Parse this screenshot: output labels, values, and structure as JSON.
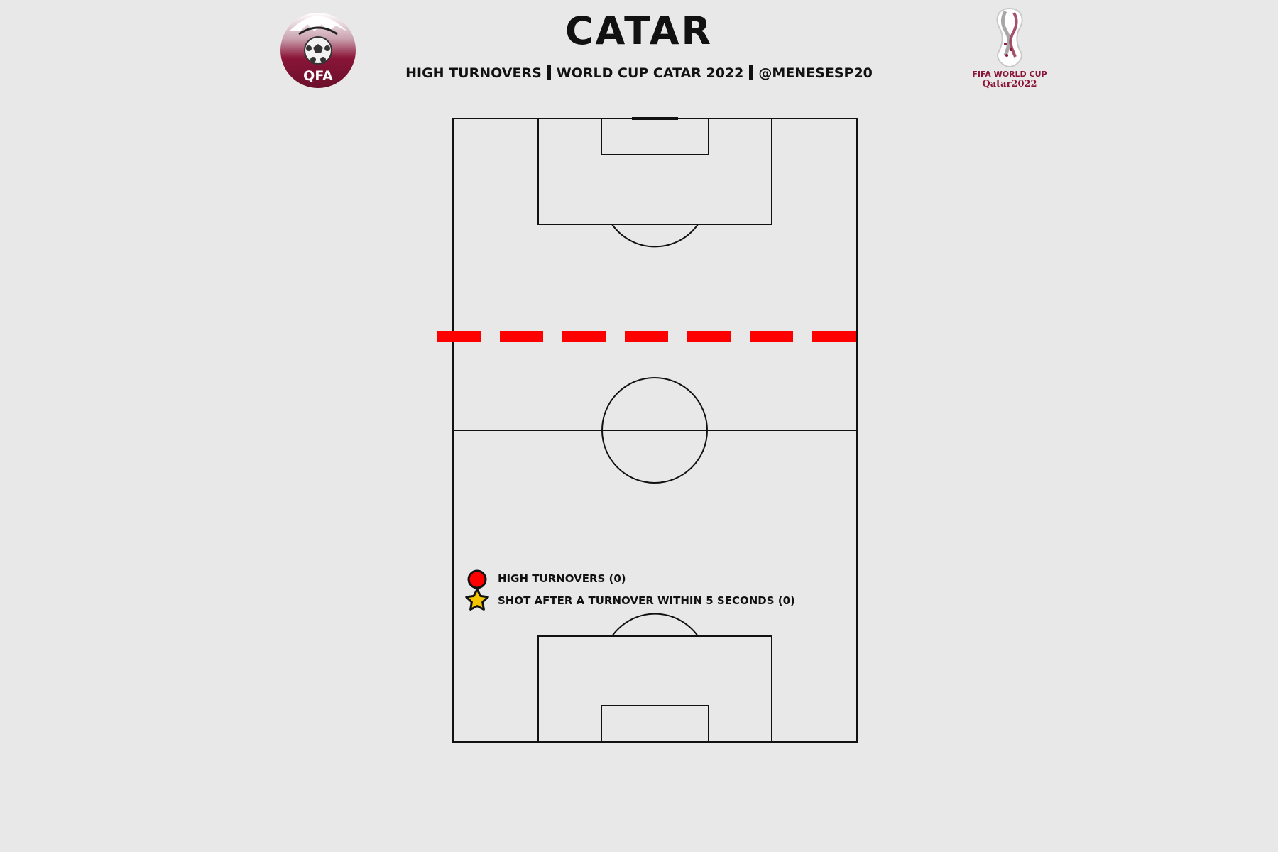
{
  "header": {
    "title": "CATAR",
    "subtitle_parts": [
      "HIGH TURNOVERS",
      "WORLD CUP CATAR 2022",
      "@MENESESP20"
    ],
    "left_logo_text": "QFA",
    "right_logo_line1": "FIFA WORLD CUP",
    "right_logo_line2": "Qatar2022"
  },
  "colors": {
    "background": "#e8e8e8",
    "pitch_lines": "#111111",
    "high_line": "#ff0000",
    "turnover_marker": "#ff0000",
    "shot_marker": "#f5c400",
    "qatar_maroon": "#8a1538"
  },
  "chart_data": {
    "type": "scatter",
    "turnovers": [],
    "shots": [],
    "legend": [
      {
        "marker": "circle",
        "label": "HIGH TURNOVERS (0)"
      },
      {
        "marker": "star",
        "label": "SHOT AFTER A TURNOVER WITHIN 5 SECONDS (0)"
      }
    ]
  }
}
